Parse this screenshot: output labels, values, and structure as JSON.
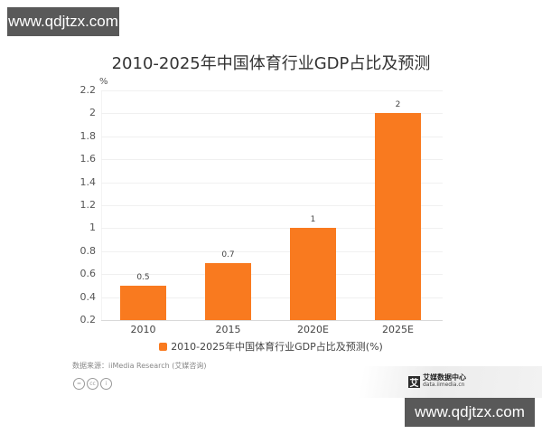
{
  "watermarks": {
    "top": "www.qdjtzx.com",
    "bottom": "www.qdjtzx.com"
  },
  "colors": {
    "bar": "#F97A1F",
    "text": "#333333",
    "grid": "#F0F0F0"
  },
  "chart_data": {
    "type": "bar",
    "title": "2010-2025年中国体育行业GDP占比及预测",
    "xlabel": "",
    "ylabel": "%",
    "ylim": [
      0.2,
      2.2
    ],
    "yticks": [
      "2.2",
      "2",
      "1.8",
      "1.6",
      "1.4",
      "1.2",
      "1",
      "0.8",
      "0.6",
      "0.4",
      "0.2"
    ],
    "grid": true,
    "categories": [
      "2010",
      "2015",
      "2020E",
      "2025E"
    ],
    "values": [
      0.5,
      0.7,
      1,
      2
    ],
    "data_labels": [
      "0.5",
      "0.7",
      "1",
      "2"
    ],
    "series": [
      {
        "name": "2010-2025年中国体育行业GDP占比及预测(%)",
        "values": [
          0.5,
          0.7,
          1,
          2
        ]
      }
    ],
    "legend_position": "bottom"
  },
  "footer": {
    "source": "数据来源：iiMedia Research (艾媒咨询)",
    "license_icons": [
      "=",
      "cc",
      "i"
    ],
    "logo_cn": "艾媒数据中心",
    "logo_en": "data.iimedia.cn",
    "logo_mark": "艾"
  }
}
